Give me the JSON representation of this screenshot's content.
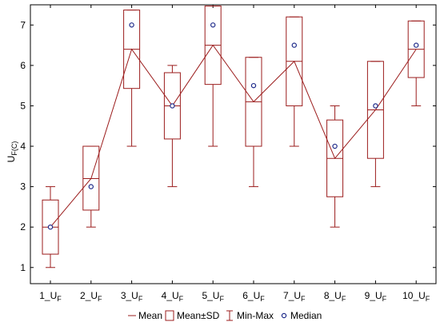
{
  "chart_data": {
    "type": "box",
    "ylabel": "U",
    "ylabel_sub": "F(C)",
    "ylim": [
      0.6,
      7.5
    ],
    "yticks": [
      1,
      2,
      3,
      4,
      5,
      6,
      7
    ],
    "ytick_labels": [
      "1",
      "2",
      "3",
      "4",
      "5",
      "6",
      "7"
    ],
    "categories": [
      "1_U",
      "2_U",
      "3_U",
      "4_U",
      "5_U",
      "6_U",
      "7_U",
      "8_U",
      "9_U",
      "10_U"
    ],
    "category_sub": "F",
    "mean": [
      2.0,
      3.2,
      6.4,
      5.0,
      6.5,
      5.1,
      6.1,
      3.7,
      4.9,
      6.4
    ],
    "sd_low": [
      1.33,
      2.42,
      5.43,
      4.18,
      5.53,
      4.0,
      5.0,
      2.75,
      3.7,
      5.7
    ],
    "sd_high": [
      2.67,
      4.0,
      7.37,
      5.82,
      7.47,
      6.2,
      7.2,
      4.65,
      6.1,
      7.1
    ],
    "min": [
      1,
      2,
      4,
      3,
      4,
      3,
      4,
      2,
      3,
      5
    ],
    "max": [
      3,
      4,
      7.37,
      6,
      7.47,
      6.2,
      7.2,
      5,
      6.1,
      7.1
    ],
    "median": [
      2,
      3,
      7,
      5,
      7,
      5.5,
      6.5,
      4,
      5,
      6.5
    ],
    "grid": false,
    "legend_position": "bottom",
    "legend": [
      {
        "key": "mean",
        "label": "Mean"
      },
      {
        "key": "sd",
        "label": "Mean±SD"
      },
      {
        "key": "minmax",
        "label": "Min-Max"
      },
      {
        "key": "median",
        "label": "Median"
      }
    ],
    "colors": {
      "series": "#9b1c1c",
      "median": "#1f2b8a",
      "axis": "#000000"
    }
  }
}
